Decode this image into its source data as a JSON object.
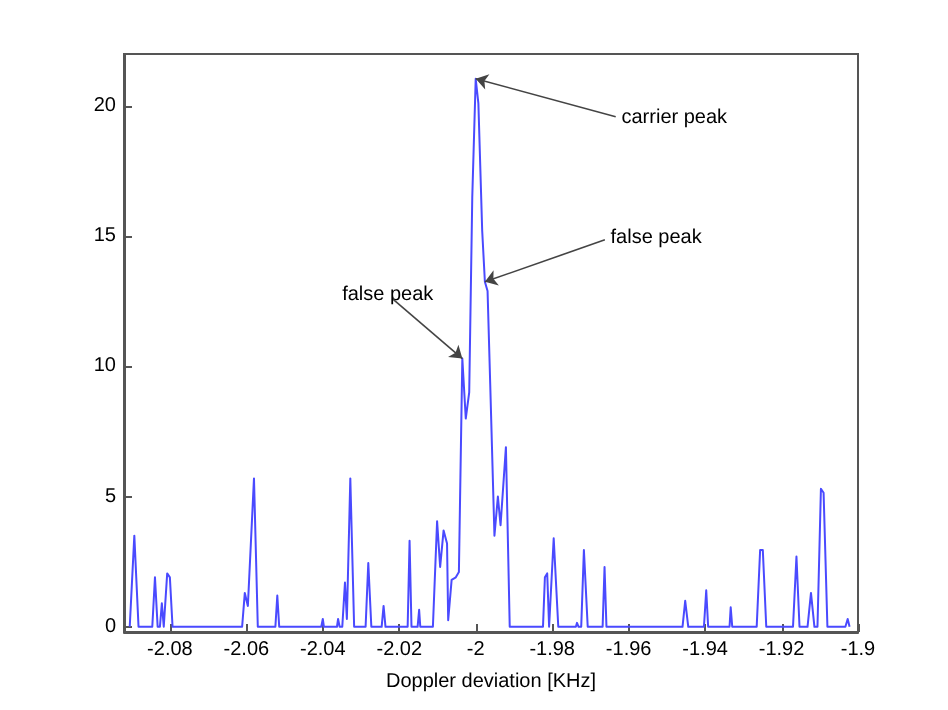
{
  "chart_data": {
    "type": "line",
    "xlabel": "Doppler deviation [KHz]",
    "x": [
      -2.0905,
      -2.0893,
      -2.0882,
      -2.0846,
      -2.0839,
      -2.0832,
      -2.0826,
      -2.0821,
      -2.0816,
      -2.0807,
      -2.08,
      -2.0793,
      -2.0611,
      -2.0604,
      -2.0596,
      -2.058,
      -2.057,
      -2.0524,
      -2.0519,
      -2.0514,
      -2.0404,
      -2.04,
      -2.0397,
      -2.0363,
      -2.036,
      -2.0356,
      -2.0349,
      -2.0342,
      -2.0337,
      -2.0328,
      -2.0318,
      -2.0288,
      -2.0281,
      -2.0273,
      -2.0246,
      -2.0241,
      -2.0236,
      -2.0178,
      -2.0173,
      -2.0168,
      -2.0152,
      -2.0148,
      -2.0145,
      -2.0112,
      -2.0101,
      -2.0093,
      -2.0084,
      -2.0075,
      -2.0072,
      -2.0063,
      -2.0052,
      -2.0044,
      -2.0035,
      -2.0026,
      -2.0017,
      -2.0009,
      -2.0,
      -1.9993,
      -1.9983,
      -1.9976,
      -1.9969,
      -1.9962,
      -1.9951,
      -1.9942,
      -1.9935,
      -1.9921,
      -1.9911,
      -1.9824,
      -1.9819,
      -1.9813,
      -1.9808,
      -1.9796,
      -1.9784,
      -1.9738,
      -1.9735,
      -1.9731,
      -1.9724,
      -1.9717,
      -1.9707,
      -1.9668,
      -1.9663,
      -1.9658,
      -1.9459,
      -1.9452,
      -1.9444,
      -1.9403,
      -1.9397,
      -1.9392,
      -1.9336,
      -1.9333,
      -1.9329,
      -1.9265,
      -1.9256,
      -1.9249,
      -1.924,
      -1.917,
      -1.9161,
      -1.9153,
      -1.9132,
      -1.9123,
      -1.9114,
      -1.9106,
      -1.9097,
      -1.909,
      -1.908,
      -1.9033,
      -1.9027,
      -1.9022
    ],
    "series": [
      {
        "color": "#4a4aff",
        "values": [
          0,
          3.5,
          0,
          0,
          1.9,
          0,
          0,
          0.9,
          0,
          2.05,
          1.9,
          0,
          0,
          1.3,
          0.8,
          5.7,
          0,
          0,
          1.2,
          0,
          0,
          0.3,
          0,
          0,
          0.3,
          0,
          0,
          1.7,
          0.3,
          5.7,
          0,
          0,
          2.45,
          0,
          0,
          0.8,
          0,
          0,
          3.3,
          0,
          0,
          0.65,
          0,
          0,
          4.05,
          2.3,
          3.7,
          3.2,
          0.25,
          1.8,
          1.9,
          2.1,
          10.3,
          8.0,
          9.0,
          16.5,
          21.05,
          20.1,
          15.2,
          13.25,
          12.9,
          9.3,
          3.5,
          5.0,
          3.9,
          6.9,
          0,
          0,
          1.9,
          2.05,
          0,
          3.4,
          0,
          0,
          0.15,
          0,
          0,
          2.95,
          0,
          0,
          2.3,
          0,
          0,
          1.0,
          0,
          0,
          1.4,
          0,
          0,
          0.75,
          0,
          0,
          2.95,
          2.95,
          0,
          0,
          2.7,
          0,
          0,
          1.3,
          0,
          0,
          5.3,
          5.15,
          0,
          0,
          0.3,
          0
        ]
      }
    ],
    "xlim": [
      -2.092,
      -1.9
    ],
    "xticks": [
      -2.08,
      -2.06,
      -2.04,
      -2.02,
      -2,
      -1.98,
      -1.96,
      -1.94,
      -1.92,
      -1.9
    ],
    "ylim": [
      -0.2,
      22
    ],
    "yticks": [
      0,
      5,
      10,
      15,
      20
    ],
    "grid": false,
    "marker": "none",
    "line_style": "solid",
    "annotations": [
      {
        "text": "carrier peak",
        "x": -2.0,
        "y": 21.05
      },
      {
        "text": "false peak",
        "x": -1.9976,
        "y": 13.25
      },
      {
        "text": "false peak",
        "x": -2.0035,
        "y": 10.3
      }
    ]
  }
}
